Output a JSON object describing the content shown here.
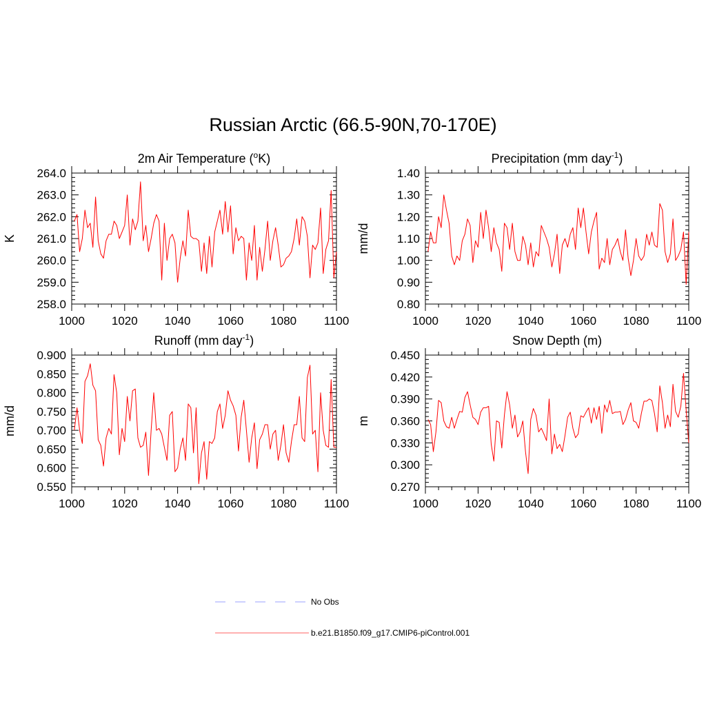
{
  "figure": {
    "title": "Russian Arctic (66.5-90N,70-170E)"
  },
  "legend": {
    "entries": [
      {
        "label": "No Obs",
        "color": "#9aa0ff",
        "style": "dashed"
      },
      {
        "label": "b.e21.B1850.f09_g17.CMIP6-piControl.001",
        "color": "#ff4040",
        "style": "solid"
      }
    ]
  },
  "chart_data": [
    {
      "type": "line",
      "title": "2m Air Temperature (",
      "title_sup": "o",
      "title_end": "K)",
      "xlabel": "",
      "ylabel": "K",
      "xlim": [
        1000,
        1100
      ],
      "ylim": [
        258.0,
        264.0
      ],
      "xticks": [
        1000,
        1020,
        1040,
        1060,
        1080,
        1100
      ],
      "yticks": [
        258.0,
        259.0,
        260.0,
        261.0,
        262.0,
        263.0,
        264.0
      ],
      "yticklabels": [
        "258.0",
        "259.0",
        "260.0",
        "261.0",
        "262.0",
        "263.0",
        "264.0"
      ],
      "series": [
        {
          "name": "b.e21.B1850.f09_g17.CMIP6-piControl.001",
          "color": "#ff0000",
          "x_start": 1001,
          "x_step": 1,
          "values": [
            261.8,
            262.1,
            260.4,
            261.0,
            262.3,
            261.5,
            261.7,
            260.6,
            262.9,
            260.9,
            260.3,
            260.1,
            260.9,
            261.2,
            261.2,
            261.8,
            261.6,
            261.0,
            261.3,
            261.6,
            263.0,
            260.7,
            261.9,
            261.4,
            261.8,
            263.6,
            260.9,
            261.6,
            260.4,
            261.0,
            261.7,
            262.1,
            261.8,
            259.1,
            261.7,
            260.0,
            261.0,
            261.2,
            260.8,
            259.0,
            260.1,
            260.9,
            260.2,
            262.3,
            261.1,
            261.0,
            261.0,
            260.9,
            259.5,
            260.8,
            259.4,
            261.1,
            259.7,
            261.3,
            261.8,
            262.3,
            261.2,
            262.7,
            261.3,
            262.5,
            260.3,
            261.5,
            260.9,
            261.1,
            261.0,
            259.1,
            260.8,
            260.0,
            261.6,
            259.1,
            260.6,
            259.5,
            260.5,
            261.8,
            260.0,
            260.9,
            261.5,
            260.7,
            259.7,
            259.8,
            260.1,
            260.2,
            260.4,
            261.0,
            261.9,
            260.7,
            262.0,
            261.8,
            261.1,
            259.2,
            260.7,
            260.5,
            260.8,
            262.4,
            259.4,
            260.5,
            260.9,
            263.2,
            259.2,
            260.4
          ]
        }
      ]
    },
    {
      "type": "line",
      "title": "Precipitation (mm day",
      "title_sup": "-1",
      "title_end": ")",
      "xlabel": "",
      "ylabel": "mm/d",
      "xlim": [
        1000,
        1100
      ],
      "ylim": [
        0.8,
        1.4
      ],
      "xticks": [
        1000,
        1020,
        1040,
        1060,
        1080,
        1100
      ],
      "yticks": [
        0.8,
        0.9,
        1.0,
        1.1,
        1.2,
        1.3,
        1.4
      ],
      "yticklabels": [
        "0.80",
        "0.90",
        "1.00",
        "1.10",
        "1.20",
        "1.30",
        "1.40"
      ],
      "series": [
        {
          "name": "b.e21.B1850.f09_g17.CMIP6-piControl.001",
          "color": "#ff0000",
          "x_start": 1001,
          "x_step": 1,
          "values": [
            1.04,
            1.13,
            1.08,
            1.08,
            1.2,
            1.15,
            1.3,
            1.23,
            1.17,
            1.02,
            0.98,
            1.02,
            1.0,
            1.09,
            1.12,
            1.19,
            1.16,
            0.99,
            1.09,
            1.06,
            1.22,
            1.1,
            1.23,
            1.15,
            1.04,
            1.15,
            1.08,
            1.05,
            0.95,
            1.17,
            1.15,
            1.05,
            1.17,
            1.04,
            1.0,
            1.0,
            1.11,
            1.07,
            0.98,
            1.08,
            0.97,
            1.04,
            1.02,
            1.16,
            1.13,
            1.1,
            1.06,
            0.97,
            1.03,
            1.12,
            0.94,
            1.07,
            1.1,
            1.06,
            1.12,
            1.15,
            1.05,
            1.24,
            1.15,
            1.24,
            1.13,
            1.03,
            1.13,
            1.18,
            1.22,
            0.96,
            1.01,
            0.99,
            1.1,
            0.98,
            1.05,
            1.07,
            1.1,
            1.04,
            1.0,
            1.14,
            1.01,
            0.93,
            1.0,
            1.1,
            1.02,
            1.0,
            1.02,
            1.12,
            1.07,
            1.13,
            1.07,
            1.06,
            1.26,
            1.23,
            1.04,
            0.99,
            1.03,
            1.19,
            1.0,
            1.02,
            1.05,
            1.13,
            0.89,
            1.13
          ]
        }
      ]
    },
    {
      "type": "line",
      "title": "Runoff (mm day",
      "title_sup": "-1",
      "title_end": ")",
      "xlabel": "",
      "ylabel": "mm/d",
      "xlim": [
        1000,
        1100
      ],
      "ylim": [
        0.55,
        0.9
      ],
      "xticks": [
        1000,
        1020,
        1040,
        1060,
        1080,
        1100
      ],
      "yticks": [
        0.55,
        0.6,
        0.65,
        0.7,
        0.75,
        0.8,
        0.85,
        0.9
      ],
      "yticklabels": [
        "0.550",
        "0.600",
        "0.650",
        "0.700",
        "0.750",
        "0.800",
        "0.850",
        "0.900"
      ],
      "series": [
        {
          "name": "b.e21.B1850.f09_g17.CMIP6-piControl.001",
          "color": "#ff0000",
          "x_start": 1001,
          "x_step": 1,
          "values": [
            0.7,
            0.76,
            0.7,
            0.665,
            0.83,
            0.845,
            0.877,
            0.82,
            0.805,
            0.675,
            0.66,
            0.605,
            0.68,
            0.705,
            0.69,
            0.848,
            0.8,
            0.635,
            0.705,
            0.67,
            0.79,
            0.725,
            0.805,
            0.81,
            0.68,
            0.655,
            0.66,
            0.695,
            0.58,
            0.7,
            0.8,
            0.7,
            0.705,
            0.69,
            0.655,
            0.62,
            0.74,
            0.75,
            0.59,
            0.6,
            0.65,
            0.68,
            0.62,
            0.77,
            0.76,
            0.64,
            0.76,
            0.558,
            0.64,
            0.67,
            0.57,
            0.67,
            0.665,
            0.68,
            0.75,
            0.77,
            0.705,
            0.74,
            0.805,
            0.78,
            0.765,
            0.74,
            0.645,
            0.735,
            0.78,
            0.7,
            0.615,
            0.68,
            0.72,
            0.598,
            0.675,
            0.69,
            0.715,
            0.715,
            0.65,
            0.69,
            0.7,
            0.62,
            0.66,
            0.715,
            0.64,
            0.615,
            0.67,
            0.715,
            0.715,
            0.79,
            0.68,
            0.67,
            0.84,
            0.873,
            0.69,
            0.7,
            0.59,
            0.8,
            0.7,
            0.66,
            0.655,
            0.835,
            0.655,
            0.655
          ]
        }
      ]
    },
    {
      "type": "line",
      "title": "Snow Depth (m)",
      "title_sup": "",
      "title_end": "",
      "xlabel": "",
      "ylabel": "m",
      "xlim": [
        1000,
        1100
      ],
      "ylim": [
        0.27,
        0.45
      ],
      "xticks": [
        1000,
        1020,
        1040,
        1060,
        1080,
        1100
      ],
      "yticks": [
        0.27,
        0.3,
        0.33,
        0.36,
        0.39,
        0.42,
        0.45
      ],
      "yticklabels": [
        "0.270",
        "0.300",
        "0.330",
        "0.360",
        "0.390",
        "0.420",
        "0.450"
      ],
      "series": [
        {
          "name": "b.e21.B1850.f09_g17.CMIP6-piControl.001",
          "color": "#ff0000",
          "x_start": 1001,
          "x_step": 1,
          "values": [
            0.362,
            0.355,
            0.318,
            0.345,
            0.388,
            0.385,
            0.36,
            0.352,
            0.35,
            0.365,
            0.35,
            0.362,
            0.373,
            0.372,
            0.392,
            0.4,
            0.382,
            0.365,
            0.362,
            0.355,
            0.372,
            0.378,
            0.378,
            0.38,
            0.328,
            0.305,
            0.36,
            0.358,
            0.323,
            0.368,
            0.4,
            0.382,
            0.35,
            0.368,
            0.338,
            0.345,
            0.36,
            0.318,
            0.288,
            0.362,
            0.377,
            0.368,
            0.345,
            0.35,
            0.342,
            0.333,
            0.39,
            0.315,
            0.342,
            0.322,
            0.328,
            0.318,
            0.34,
            0.365,
            0.372,
            0.35,
            0.337,
            0.342,
            0.367,
            0.365,
            0.372,
            0.378,
            0.357,
            0.378,
            0.362,
            0.38,
            0.343,
            0.382,
            0.372,
            0.388,
            0.37,
            0.372,
            0.372,
            0.373,
            0.355,
            0.362,
            0.375,
            0.385,
            0.36,
            0.358,
            0.35,
            0.37,
            0.387,
            0.387,
            0.39,
            0.388,
            0.37,
            0.345,
            0.408,
            0.385,
            0.35,
            0.368,
            0.352,
            0.41,
            0.373,
            0.365,
            0.38,
            0.425,
            0.375,
            0.33
          ]
        }
      ]
    }
  ]
}
